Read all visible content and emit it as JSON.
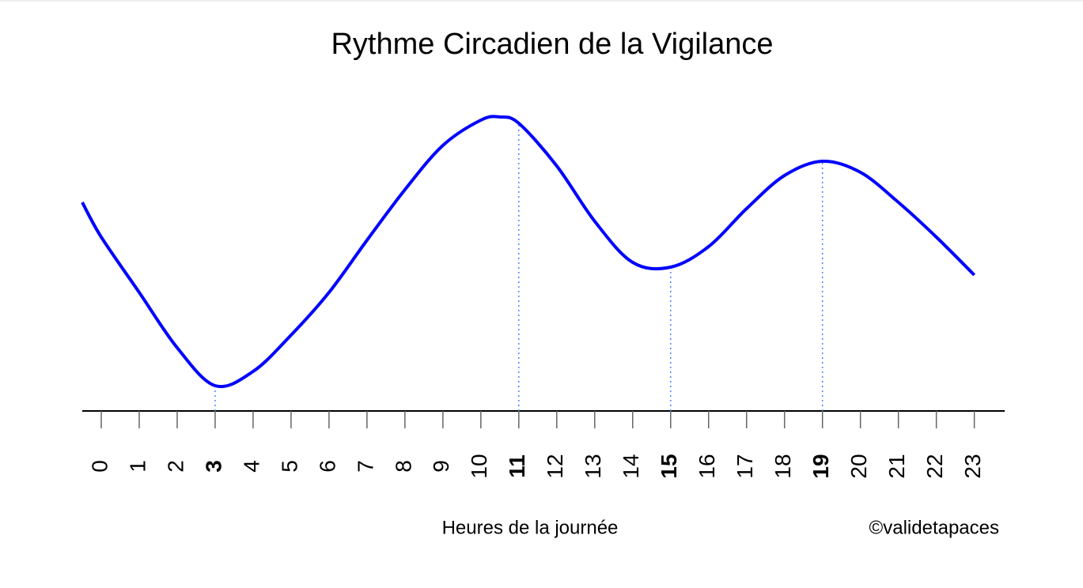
{
  "chart_data": {
    "type": "line",
    "title": "Rythme Circadien de la Vigilance",
    "x_label": "Heures de la journée",
    "credit": "©validetapaces",
    "x": [
      -0.5,
      0,
      1,
      2,
      3,
      4,
      5,
      6,
      7,
      8,
      9,
      10,
      10.5,
      11,
      12,
      13,
      14,
      15,
      16,
      17,
      18,
      19,
      20,
      21,
      22,
      23
    ],
    "series": [
      {
        "name": "Vigilance",
        "color": "#0000ff",
        "values": [
          66,
          55,
          37.5,
          20,
          8,
          12.5,
          24,
          37.5,
          54,
          70,
          84,
          92,
          93,
          91,
          77.5,
          60,
          47,
          45.5,
          52,
          64,
          74.5,
          79,
          75.5,
          66,
          55,
          43
        ]
      }
    ],
    "xlim": [
      -0.5,
      23.8
    ],
    "ylim": [
      0,
      100
    ],
    "xticks": [
      0,
      1,
      2,
      3,
      4,
      5,
      6,
      7,
      8,
      9,
      10,
      11,
      12,
      13,
      14,
      15,
      16,
      17,
      18,
      19,
      20,
      21,
      22,
      23
    ],
    "highlight_hours": [
      3,
      11,
      15,
      19
    ],
    "highlight_color": "#4a86ff"
  }
}
